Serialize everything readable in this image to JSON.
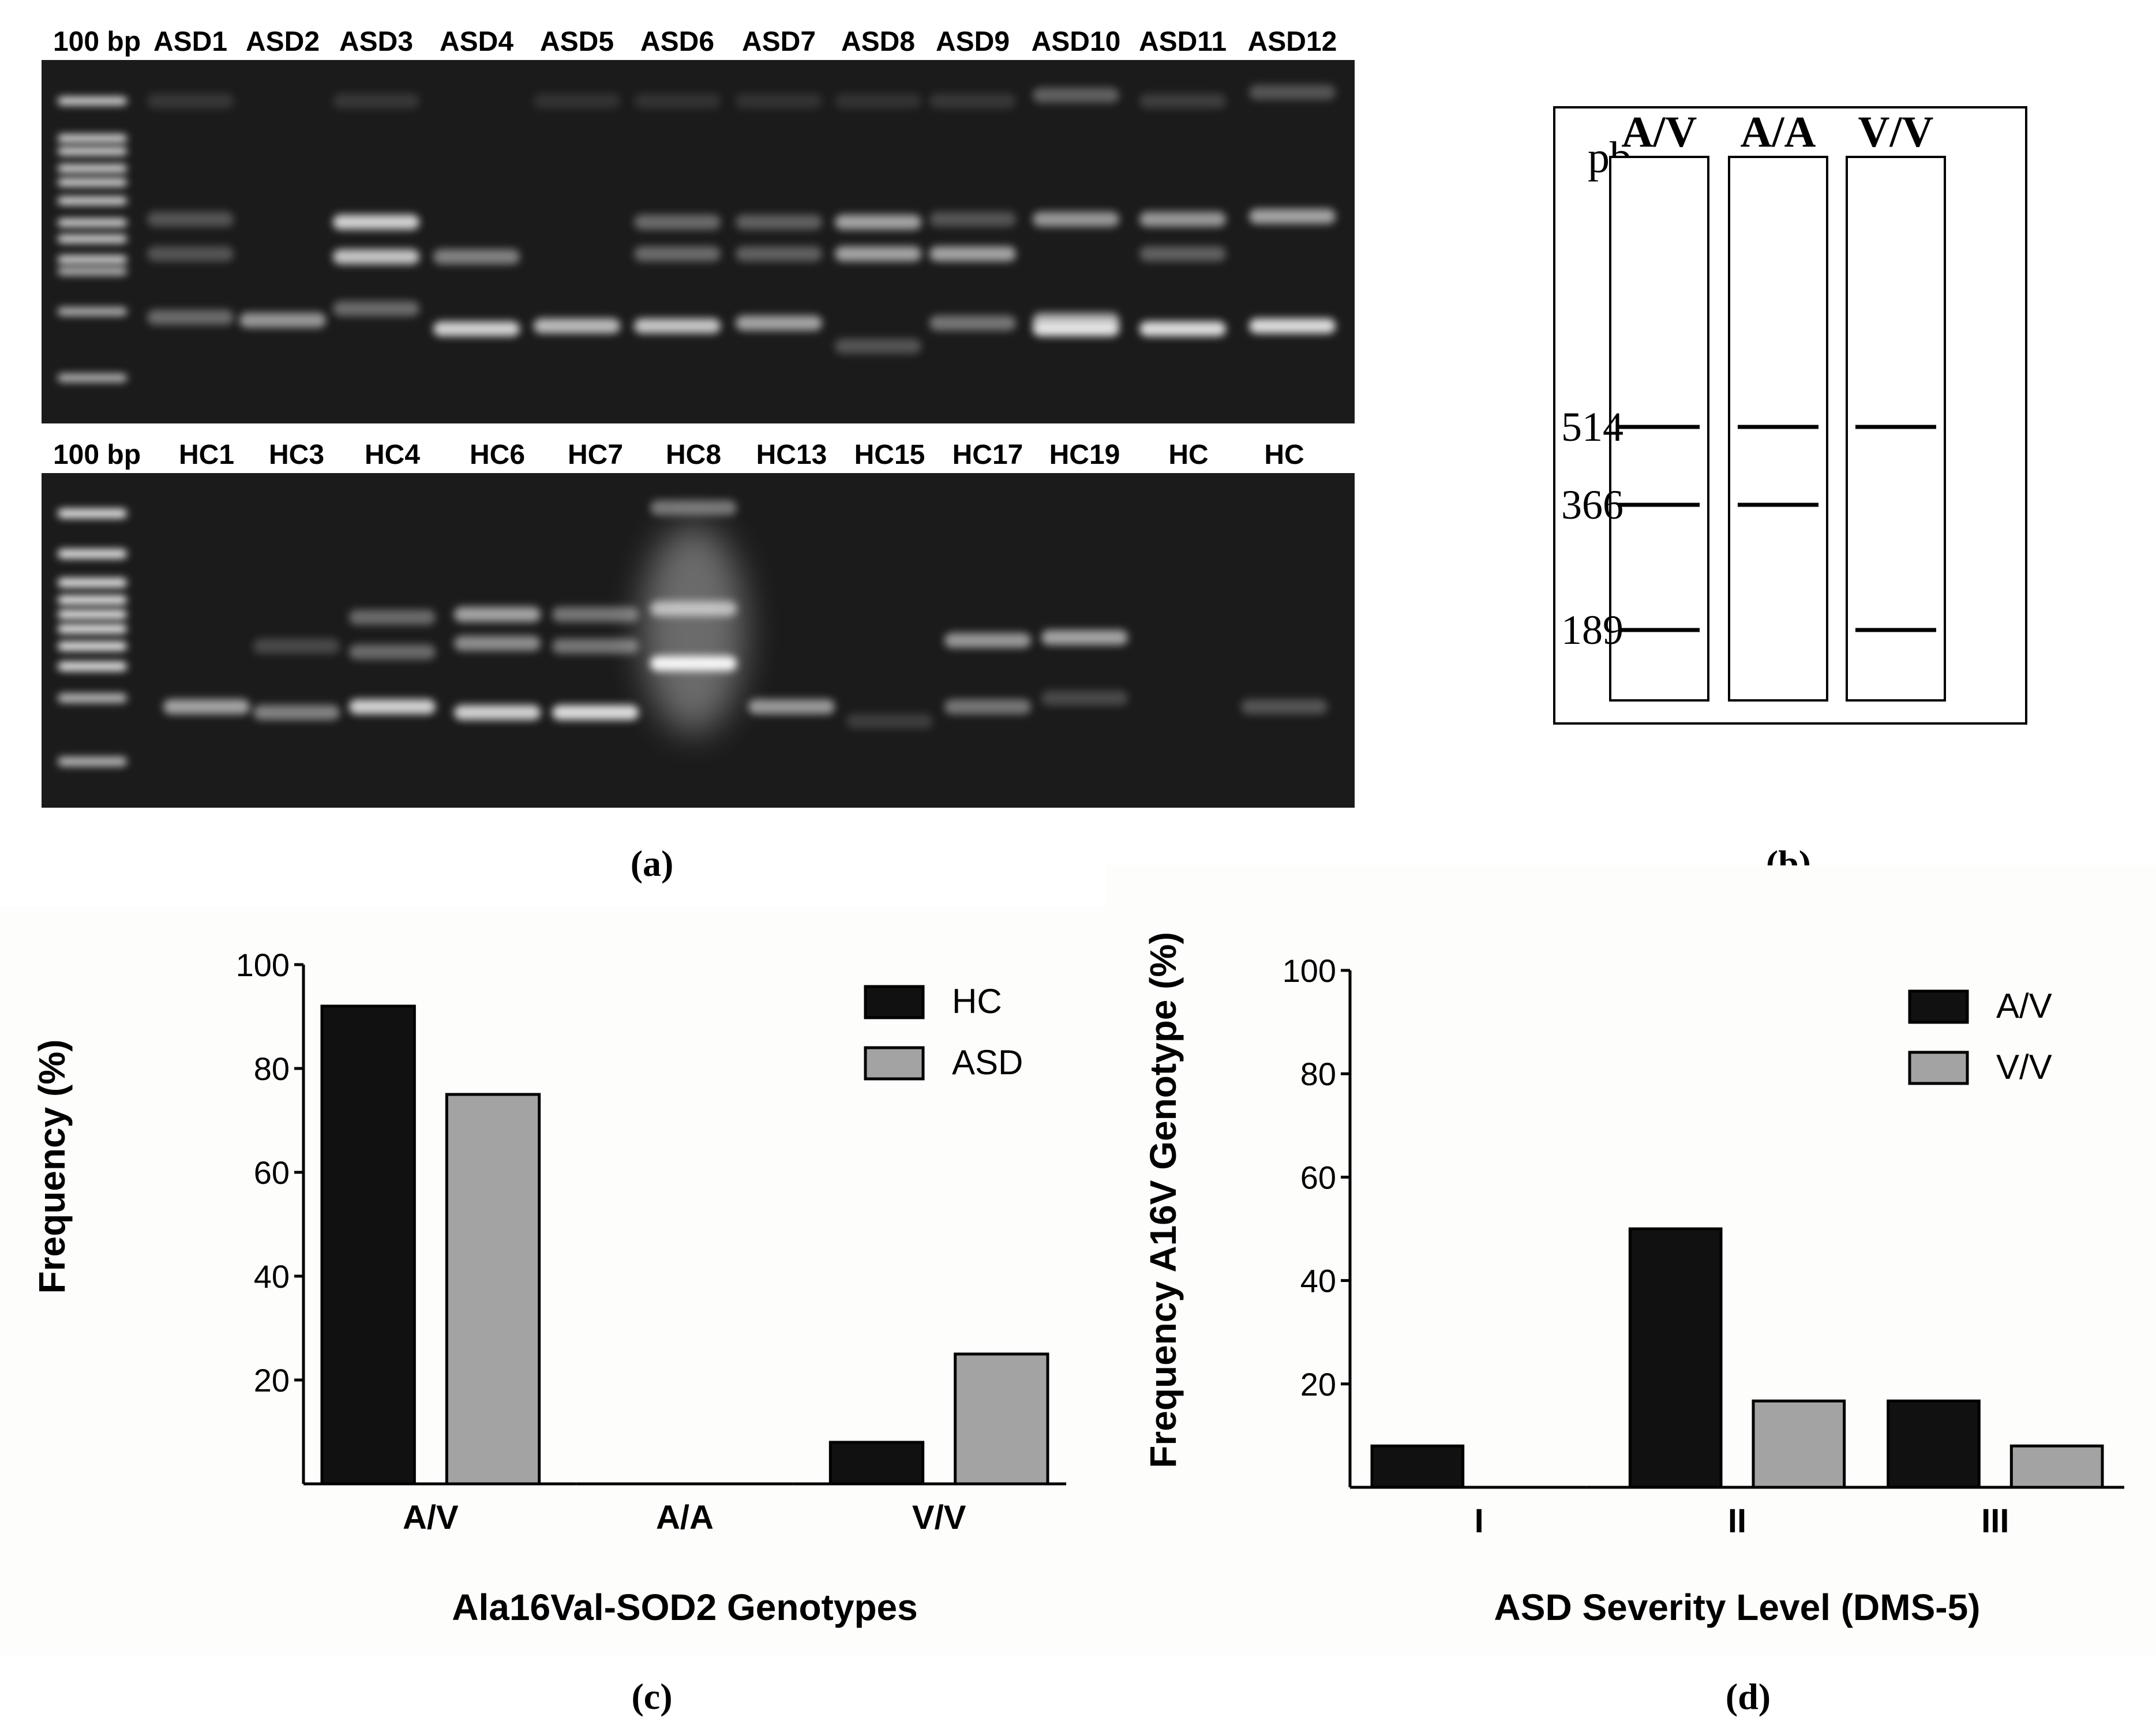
{
  "panel_a": {
    "caption": "(a)",
    "gel_top": {
      "ladder_label": "100 bp",
      "lanes": [
        "ASD1",
        "ASD2",
        "ASD3",
        "ASD4",
        "ASD5",
        "ASD6",
        "ASD7",
        "ASD8",
        "ASD9",
        "ASD10",
        "ASD11",
        "ASD12"
      ]
    },
    "gel_bottom": {
      "ladder_label": "100 bp",
      "lanes": [
        "HC1",
        "HC3",
        "HC4",
        "HC6",
        "HC7",
        "HC8",
        "HC13",
        "HC15",
        "HC17",
        "HC19",
        "HC",
        "HC"
      ]
    }
  },
  "panel_b": {
    "caption": "(b)",
    "unit_label": "pb",
    "lanes": [
      "A/V",
      "A/A",
      "V/V"
    ],
    "bands": [
      {
        "size": "514",
        "present": [
          true,
          true,
          true
        ]
      },
      {
        "size": "366",
        "present": [
          true,
          true,
          false
        ]
      },
      {
        "size": "189",
        "present": [
          true,
          false,
          true
        ]
      }
    ]
  },
  "chart_data": [
    {
      "type": "bar",
      "panel": "(c)",
      "categories": [
        "A/V",
        "A/A",
        "V/V"
      ],
      "series": [
        {
          "name": "HC",
          "values": [
            92,
            0,
            8
          ],
          "color": "#111111"
        },
        {
          "name": "ASD",
          "values": [
            75,
            0,
            25
          ],
          "color": "#a3a3a3"
        }
      ],
      "xlabel": "Ala16Val-SOD2 Genotypes",
      "ylabel": "Frequency (%)",
      "ylim": [
        0,
        100
      ],
      "yticks": [
        "20",
        "40",
        "60",
        "80",
        "100"
      ],
      "legend": "top-right",
      "grid": false
    },
    {
      "type": "bar",
      "panel": "(d)",
      "categories": [
        "I",
        "II",
        "III"
      ],
      "series": [
        {
          "name": "A/V",
          "values": [
            8,
            50,
            16.7
          ],
          "color": "#111111"
        },
        {
          "name": "V/V",
          "values": [
            0,
            16.7,
            8
          ],
          "color": "#a3a3a3"
        }
      ],
      "xlabel": "ASD Severity Level (DMS-5)",
      "ylabel": "Frequency A16V Genotype (%)",
      "ylim": [
        0,
        100
      ],
      "yticks": [
        "20",
        "40",
        "60",
        "80",
        "100"
      ],
      "legend": "top-right",
      "grid": false
    }
  ]
}
